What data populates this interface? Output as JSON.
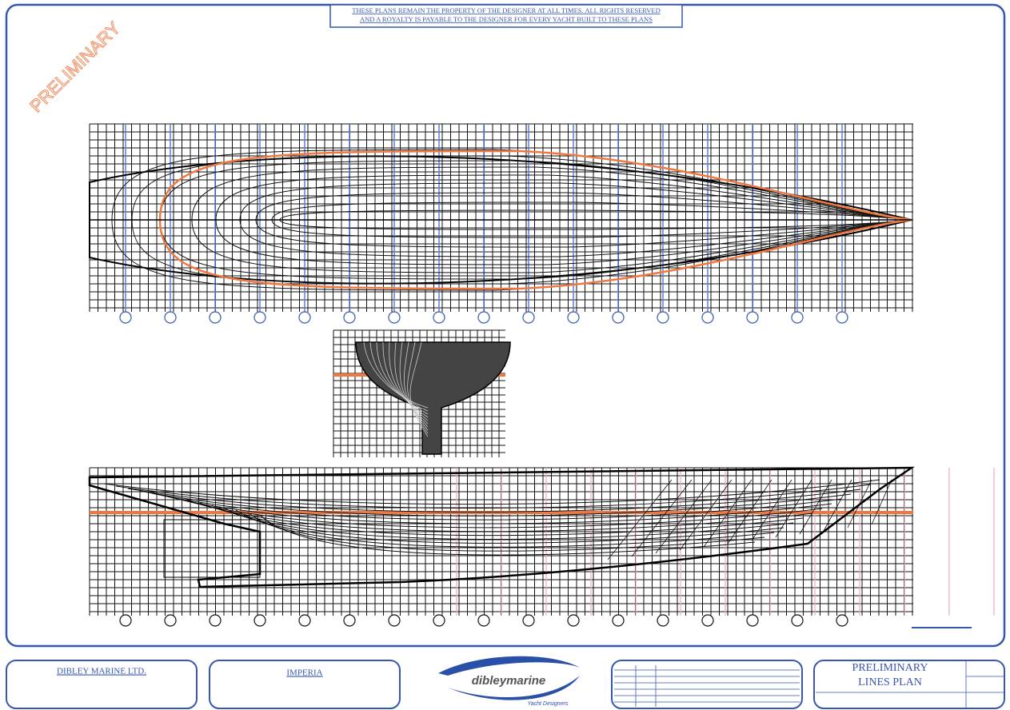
{
  "header": {
    "lines": [
      "THESE PLANS REMAIN  THE PROPERTY OF THE DESIGNER AT ALL TIMES. ALL RIGHTS RESERVED",
      "AND A ROYALTY IS PAYABLE TO THE DESIGNER FOR EVERY YACHT BUILT TO THESE PLANS"
    ]
  },
  "watermark": "PRELIMINARY",
  "footer": {
    "company": "DIBLEY MARINE LTD.",
    "project": "IMPERIA",
    "logo": {
      "name": "dibleymarine",
      "tagline": "Yacht Designers"
    },
    "title": [
      "PRELIMINARY",
      "LINES PLAN"
    ]
  }
}
